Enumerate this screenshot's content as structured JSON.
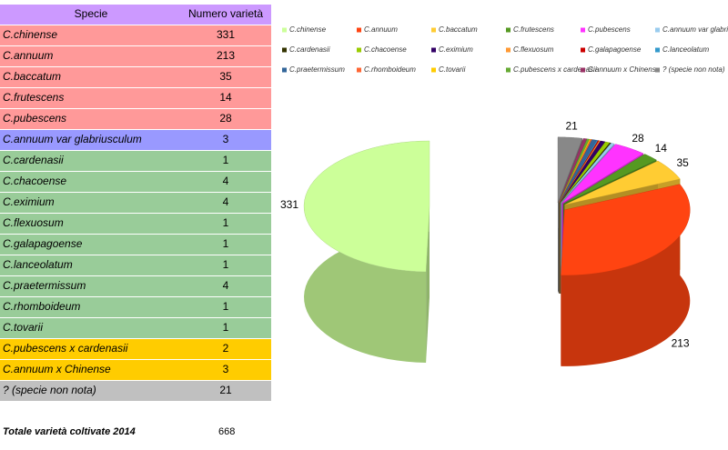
{
  "table": {
    "header": [
      "Specie",
      "Numero varietà"
    ],
    "header_color": "#cc99ff",
    "row_colors": [
      "#ff9999",
      "#ff9999",
      "#ff9999",
      "#ff9999",
      "#ff9999",
      "#9999ff",
      "#99cc99",
      "#99cc99",
      "#99cc99",
      "#99cc99",
      "#99cc99",
      "#99cc99",
      "#99cc99",
      "#99cc99",
      "#99cc99",
      "#ffcc00",
      "#ffcc00",
      "#c0c0c0"
    ]
  },
  "summary": {
    "label": "Totale varietà coltivate 2014",
    "total": "668"
  },
  "chart_data": {
    "type": "pie",
    "categories": [
      "C.chinense",
      "C.annuum",
      "C.baccatum",
      "C.frutescens",
      "C.pubescens",
      "C.annuum var glabriusculum",
      "C.cardenasii",
      "C.chacoense",
      "C.eximium",
      "C.flexuosum",
      "C.galapagoense",
      "C.lanceolatum",
      "C.praetermissum",
      "C.rhomboideum",
      "C.tovarii",
      "C.pubescens x cardenasii",
      "C.annuum x Chinense",
      "? (specie non nota)"
    ],
    "values": [
      331,
      213,
      35,
      14,
      28,
      3,
      1,
      4,
      4,
      1,
      1,
      1,
      4,
      1,
      1,
      2,
      3,
      21
    ],
    "value_labels": [
      "331",
      "213",
      "35",
      "14",
      "28",
      null,
      null,
      null,
      null,
      null,
      null,
      null,
      null,
      null,
      null,
      null,
      null,
      "21"
    ],
    "colors": [
      "#ccff99",
      "#ff4411",
      "#ffcc33",
      "#559922",
      "#ff33ff",
      "#99ccee",
      "#333300",
      "#99cc00",
      "#330066",
      "#ff9933",
      "#cc0000",
      "#3399cc",
      "#336699",
      "#ff6633",
      "#ffcc00",
      "#66aa33",
      "#993366",
      "#888888"
    ],
    "legend": "top"
  }
}
